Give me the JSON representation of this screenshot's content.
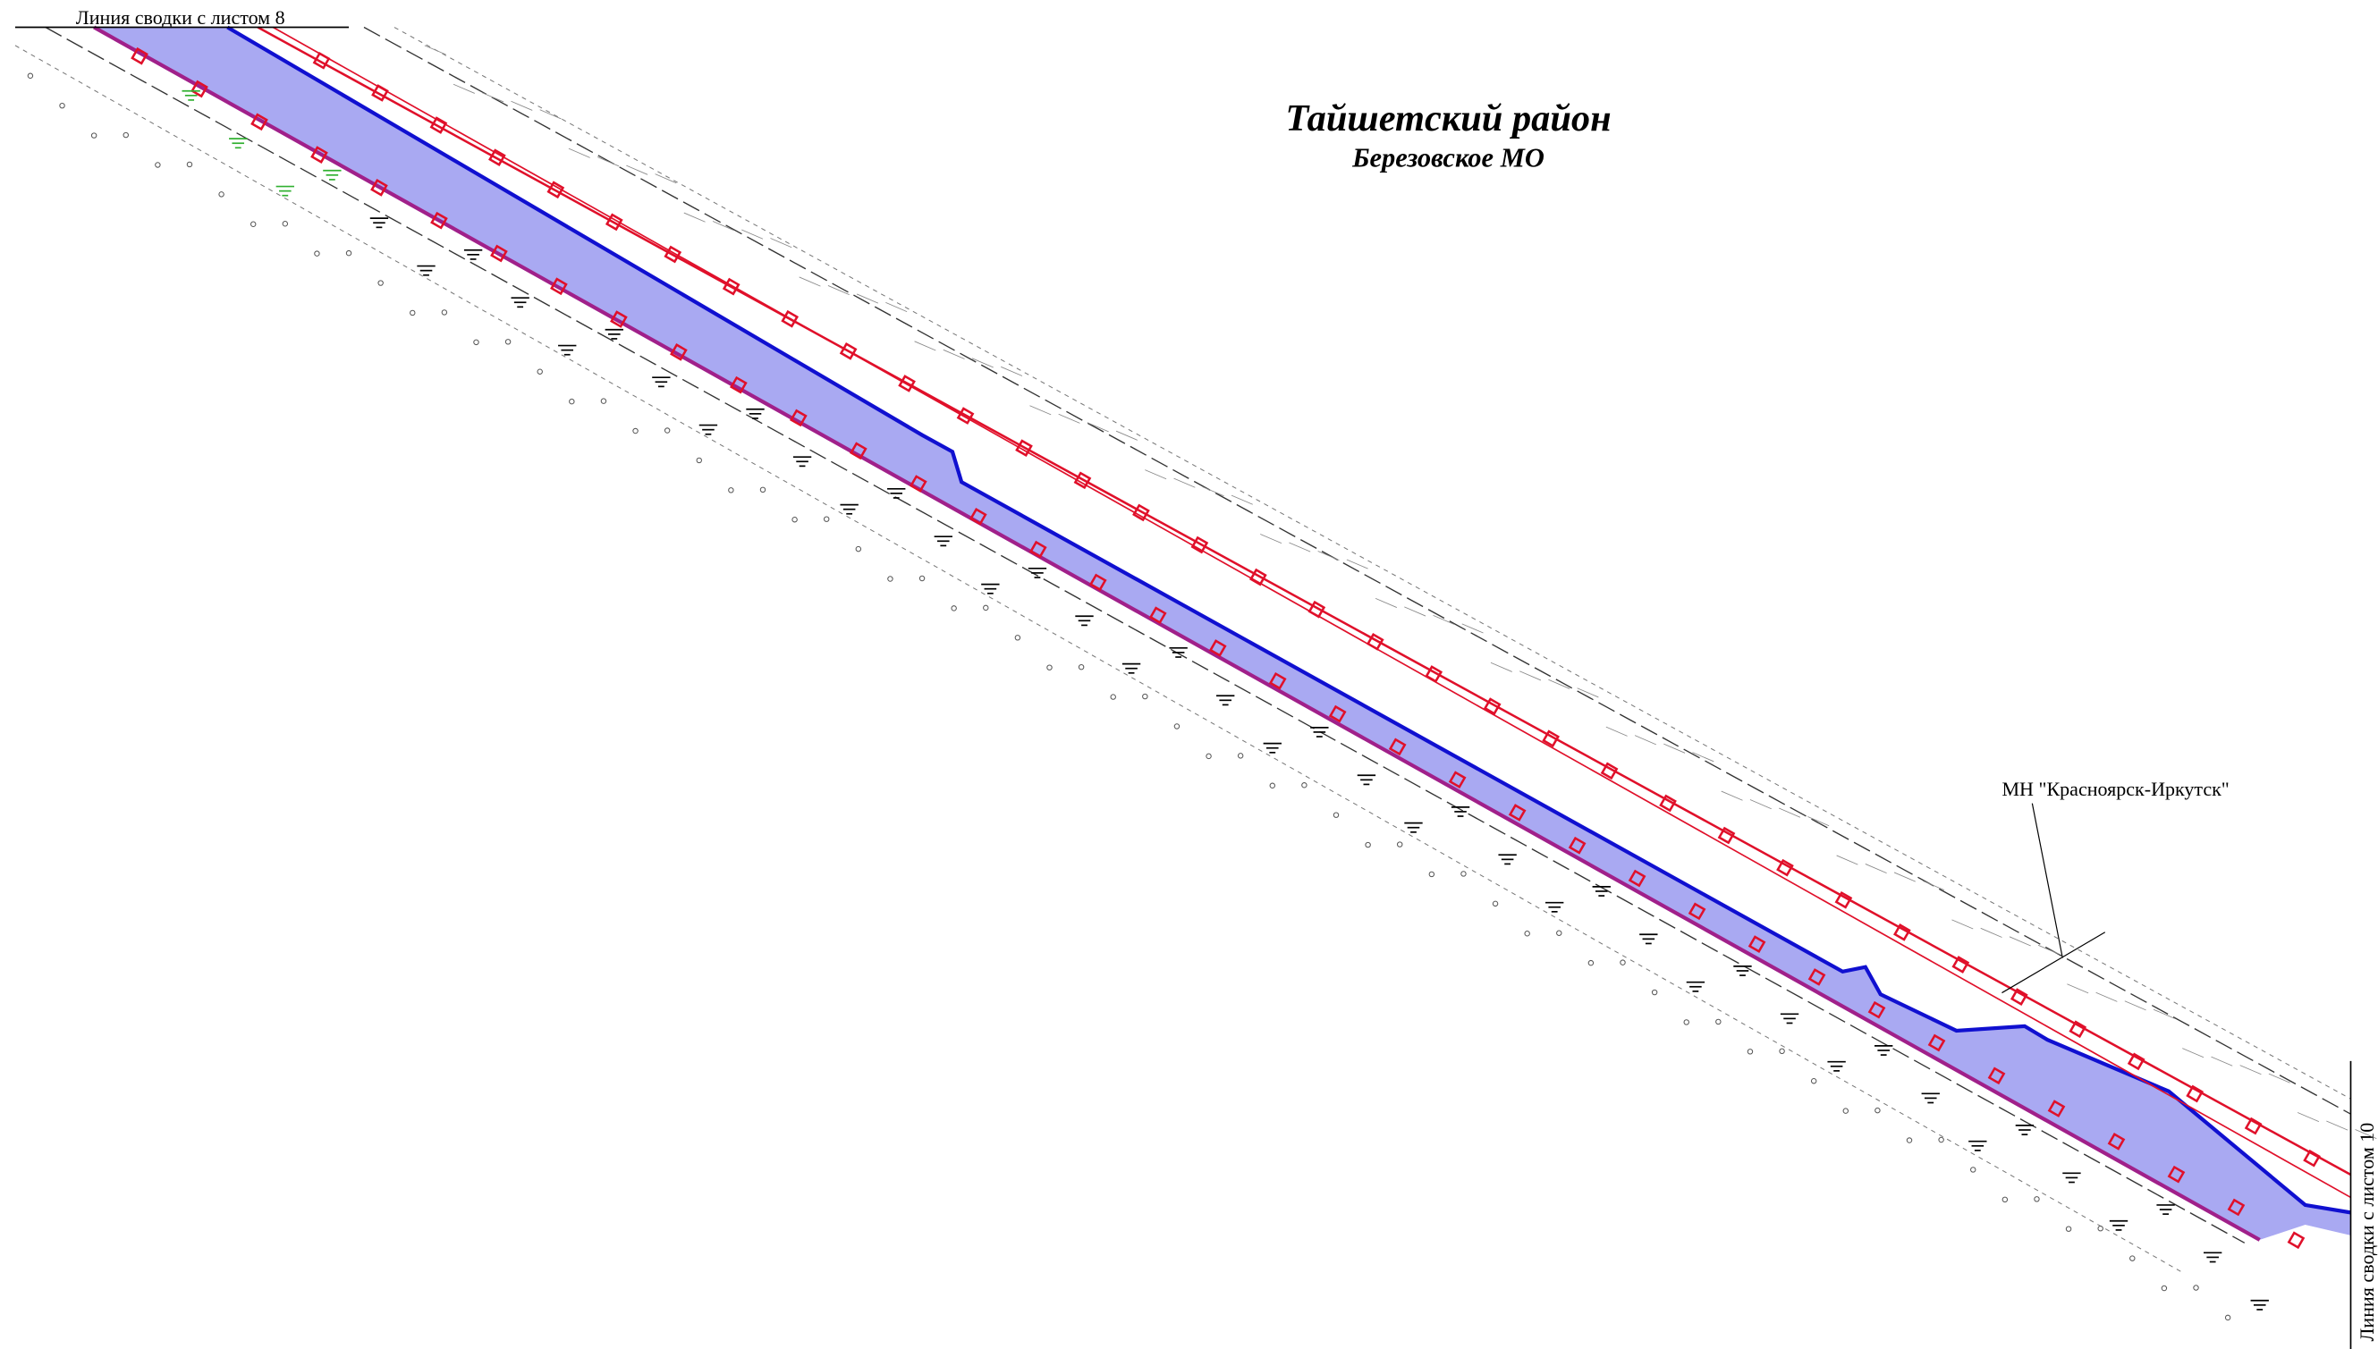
{
  "map": {
    "match_line_top": "Линия сводки с листом 8",
    "title": "Тайшетский район",
    "subtitle": "Березовское МО",
    "pipeline_label": "МН \"Красноярск-Иркутск\"",
    "match_line_right": "Линия сводки с листом 10"
  }
}
